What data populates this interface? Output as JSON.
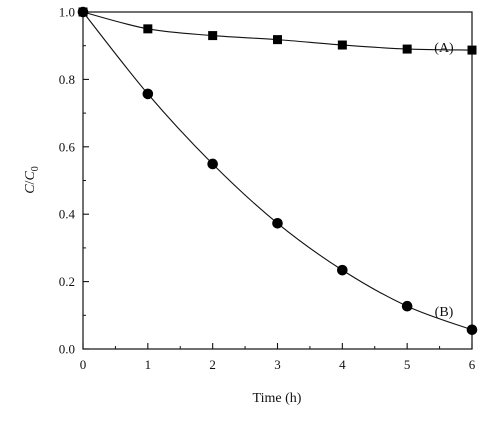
{
  "chart_data": {
    "type": "line",
    "xlabel": "Time (h)",
    "ylabel_main": "C",
    "ylabel_slash": "/",
    "ylabel_italic2": "C",
    "ylabel_sub": "0",
    "xlim": [
      0,
      6
    ],
    "ylim": [
      0.0,
      1.0
    ],
    "xticks": [
      "0",
      "1",
      "2",
      "3",
      "4",
      "5",
      "6"
    ],
    "yticks": [
      "0.0",
      "0.2",
      "0.4",
      "0.6",
      "0.8",
      "1.0"
    ],
    "grid": false,
    "x": [
      0,
      1,
      2,
      3,
      4,
      5,
      6
    ],
    "series": [
      {
        "name": "(A)",
        "marker": "square",
        "values": [
          1.0,
          0.95,
          0.93,
          0.918,
          0.902,
          0.89,
          0.887
        ]
      },
      {
        "name": "(B)",
        "marker": "circle",
        "values": [
          1.0,
          0.757,
          0.549,
          0.373,
          0.234,
          0.127,
          0.057
        ]
      }
    ]
  }
}
